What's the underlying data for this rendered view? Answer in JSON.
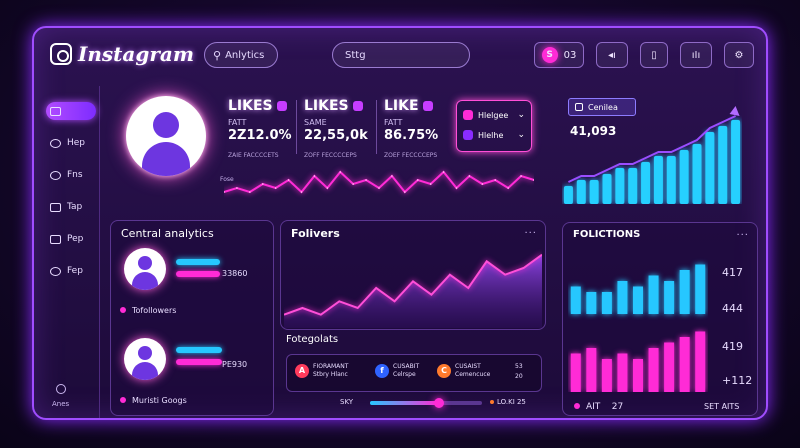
{
  "app": {
    "title": "Instagram"
  },
  "header": {
    "search_label": "Anlytics",
    "center_input_value": "Sttg",
    "notify_badge": "S",
    "notify_count": "03"
  },
  "sidebar": {
    "items": [
      {
        "label": "",
        "icon": "home-icon"
      },
      {
        "label": "Hep",
        "icon": "help-icon"
      },
      {
        "label": "Fns",
        "icon": "feed-icon"
      },
      {
        "label": "Tap",
        "icon": "tap-icon"
      },
      {
        "label": "Pep",
        "icon": "people-icon"
      },
      {
        "label": "Fep",
        "icon": "settings-icon"
      }
    ],
    "bottom_label": "Anes"
  },
  "stats": [
    {
      "title": "LIKES",
      "sub": "FATT",
      "value": "2Z12.0%",
      "foot": "ZAIE FACCCCETS"
    },
    {
      "title": "LIKES",
      "sub": "SAME",
      "value": "22,55,0k",
      "foot": "ZOFF FECCCCEPS"
    },
    {
      "title": "LIKE",
      "sub": "FATT",
      "value": "86.75%",
      "foot": "ZOEF FECCCCEPS"
    }
  ],
  "dropdowns": [
    {
      "label": "Hlelgee",
      "chev": "⌄"
    },
    {
      "label": "Hlelhe",
      "chev": "⌄"
    }
  ],
  "wave_label": "Fose",
  "growth": {
    "chip_label": "Cenilea",
    "value": "41,093"
  },
  "central": {
    "title": "Central analytics",
    "row1_value": "33860",
    "row1_label": "Tofollowers",
    "row2_value": "PE930",
    "row2_label": "Muristi Googs"
  },
  "followers_panel": {
    "title": "Folivers",
    "dots": "..."
  },
  "collaborators": {
    "title": "Fotegolats",
    "items": [
      {
        "icon": "A",
        "line1": "FIORAMANT",
        "line2": "Stbry Hlanc"
      },
      {
        "icon": "f",
        "line1": "CUSABIT",
        "line2": "Celrspe"
      },
      {
        "icon": "C",
        "line1": "CUSAIST",
        "line2": "Cemencuce"
      }
    ],
    "extra_top": "53",
    "extra_bottom": "20"
  },
  "slider": {
    "label": "SKY",
    "value_label": "LO.KI 25",
    "fill_fraction": 0.62
  },
  "right_panel": {
    "title": "FOLICTIONS",
    "dots": "...",
    "values": [
      "417",
      "444",
      "419",
      "+112"
    ],
    "bottom_left": "AIT",
    "bottom_num": "27",
    "bottom_right": "SET AITS"
  },
  "colors": {
    "cyan": "#26c7ff",
    "pink": "#ff2bd6",
    "purple": "#8a2cff",
    "frame": "#a04dff"
  },
  "chart_data": [
    {
      "type": "line",
      "values": [
        2,
        3,
        2,
        4,
        3,
        5,
        2,
        6,
        3,
        7,
        4,
        5,
        3,
        6,
        2,
        5,
        4,
        7,
        3,
        6,
        4,
        5,
        3,
        6,
        5
      ],
      "ylim": [
        0,
        8
      ]
    },
    {
      "type": "bar",
      "values": [
        3,
        4,
        4,
        5,
        6,
        6,
        7,
        8,
        8,
        9,
        10,
        12,
        13,
        14
      ],
      "ylim": [
        0,
        16
      ]
    },
    {
      "type": "area",
      "values": [
        2,
        3,
        2,
        4,
        3,
        6,
        4,
        7,
        5,
        8,
        6,
        10,
        8,
        9,
        11
      ],
      "ylim": [
        0,
        12
      ]
    },
    {
      "type": "bar",
      "series": [
        {
          "values": [
            5,
            4,
            4,
            6,
            5,
            7,
            6,
            8,
            9
          ]
        },
        {
          "values": [
            7,
            8,
            6,
            7,
            6,
            8,
            9,
            10,
            11
          ]
        }
      ],
      "ylim": [
        0,
        12
      ]
    }
  ]
}
